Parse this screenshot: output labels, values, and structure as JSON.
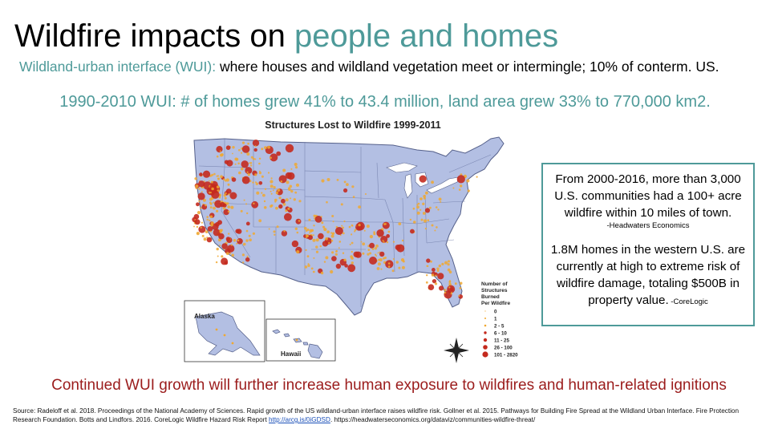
{
  "title": {
    "part1": "Wildfire impacts on ",
    "part2": "people and homes"
  },
  "subtitle": {
    "term": "Wildland-urban interface (WUI):",
    "definition": " where houses and wildland vegetation meet or intermingle; 10% of conterm. US."
  },
  "stats": "1990-2010 WUI: # of homes grew 41% to 43.4 million, land area grew 33% to 770,000 km2.",
  "map": {
    "title": "Structures Lost to Wildfire 1999-2011",
    "inset_alaska": "Alaska",
    "inset_hawaii": "Hawaii",
    "legend_title": [
      "Number of",
      "Structures",
      "Burned",
      "Per Wildfire"
    ],
    "legend_items": [
      "0",
      "1",
      "2 - 5",
      "6 - 10",
      "11 - 25",
      "26 - 100",
      "101 - 2820"
    ],
    "colors": {
      "land": "#b3bfe3",
      "water": "#ffffff",
      "small": "#f0a830",
      "large": "#c42a1e",
      "state_lines": "#6e7ba8"
    }
  },
  "infobox": {
    "p1": "From 2000-2016, more than 3,000 U.S. communities had a 100+ acre wildfire within 10 miles of town.",
    "p1_source": "-Headwaters Economics",
    "p2": "1.8M homes in the western U.S. are currently at high to extreme risk of wildfire damage, totaling $500B in property value.",
    "p2_source": " -CoreLogic"
  },
  "conclusion": "Continued WUI growth will further increase human exposure to wildfires and human-related ignitions",
  "footer": {
    "text1": "Source: Radeloff et al. 2018. Proceedings of the National Academy of Sciences. Rapid growth of the US wildland-urban interface raises wildfire risk. Gollner et al. 2015. Pathways for Building Fire Spread at the Wildland Urban Interface. Fire Protection Research Foundation.  Botts and Lindfors. 2016. CoreLogic Wildfire Hazard Risk Report  ",
    "link": "http://arcg.is/0iGDSD",
    "text2": ". https://headwaterseconomics.org/dataviz/communities-wildfire-threat/"
  }
}
